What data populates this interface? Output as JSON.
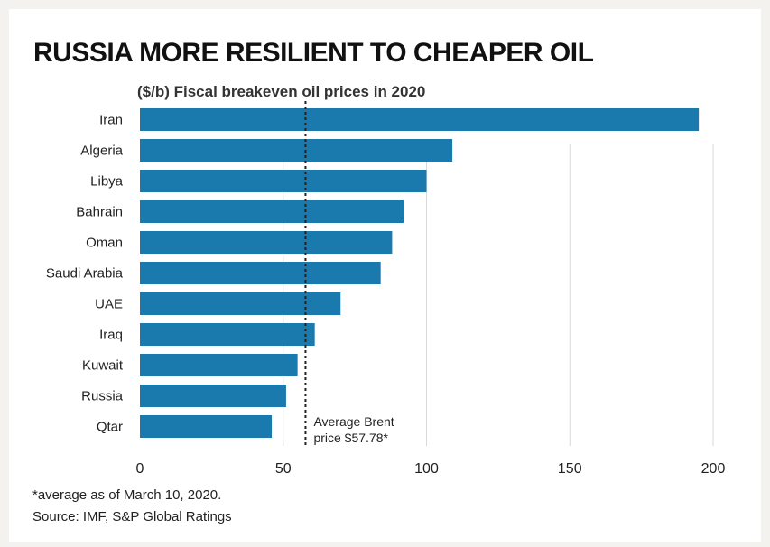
{
  "title": "RUSSIA MORE RESILIENT TO CHEAPER OIL",
  "subtitle": "($/b) Fiscal breakeven oil prices in 2020",
  "footnote": "*average as of March 10, 2020.",
  "source": "Source: IMF, S&P Global Ratings",
  "colors": {
    "bar": "#1a79ad",
    "text": "#222222",
    "grid": "#d9d9d9"
  },
  "chart_data": {
    "type": "bar",
    "orientation": "horizontal",
    "title": "RUSSIA MORE RESILIENT TO CHEAPER OIL",
    "subtitle": "($/b) Fiscal breakeven oil prices in 2020",
    "categories": [
      "Iran",
      "Algeria",
      "Libya",
      "Bahrain",
      "Oman",
      "Saudi Arabia",
      "UAE",
      "Iraq",
      "Kuwait",
      "Russia",
      "Qtar"
    ],
    "values": [
      195,
      109,
      100,
      92,
      88,
      84,
      70,
      61,
      55,
      51,
      46
    ],
    "xlim": [
      0,
      200
    ],
    "xticks": [
      0,
      50,
      100,
      150,
      200
    ],
    "grid": true,
    "reference_line": {
      "value": 57.78,
      "label_line1": "Average Brent",
      "label_line2": "price $57.78*"
    }
  }
}
